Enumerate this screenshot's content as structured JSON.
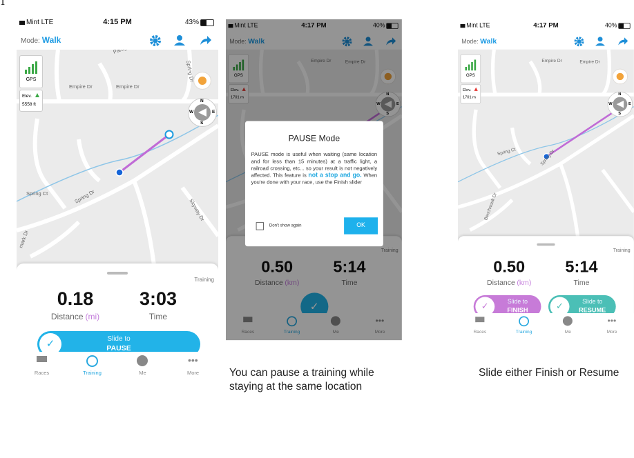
{
  "figure_number": "1",
  "screens": [
    {
      "status": {
        "carrier": "Mint LTE",
        "time": "4:15 PM",
        "battery": "43%"
      },
      "mode_label": "Mode:",
      "mode": "Walk",
      "map_labels": [
        "Paragon Dr",
        "Empire Dr",
        "Empire Dr",
        "Spring Dr",
        "Spring Ct",
        "Spring Dr",
        "Skyway Dr",
        "mark Dr"
      ],
      "gps": "GPS",
      "elev_label": "Elev.",
      "elev_value": "5558 ft",
      "compass": [
        "N",
        "W",
        "E",
        "S"
      ],
      "panel_tag": "Training",
      "distance": "0.18",
      "distance_label": "Distance",
      "distance_unit": "(mi)",
      "time": "3:03",
      "time_label": "Time",
      "sliders": [
        {
          "line1": "Slide to",
          "line2": "PAUSE"
        }
      ],
      "tabs": [
        "Races",
        "Training",
        "Me",
        "More"
      ]
    },
    {
      "status": {
        "carrier": "Mint LTE",
        "time": "4:17 PM",
        "battery": "40%"
      },
      "mode_label": "Mode:",
      "mode": "Walk",
      "map_labels": [
        "Empire Dr",
        "Empire Dr"
      ],
      "gps": "GPS",
      "elev_label": "Elev.",
      "elev_value": "1701 m",
      "compass": [
        "N",
        "W",
        "E",
        "S"
      ],
      "panel_tag": "Training",
      "distance": "0.50",
      "distance_label": "Distance",
      "distance_unit": "(km)",
      "time": "5:14",
      "time_label": "Time",
      "sliders": [],
      "tabs": [
        "Races",
        "Training",
        "Me",
        "More"
      ],
      "dialog": {
        "title": "PAUSE Mode",
        "body": "PAUSE mode is useful when waiting (same location and for less than 15 minutes) at a traffic light, a railroad crossing, etc... so your result is not negatively affected. This feature is ",
        "highlight": "not a stop and go.",
        "body_end": " When you're done with your race, use the Finish slider",
        "checkbox": "Don't show again",
        "button": "OK"
      }
    },
    {
      "status": {
        "carrier": "Mint LTE",
        "time": "4:17 PM",
        "battery": "40%"
      },
      "mode_label": "Mode:",
      "mode": "Walk",
      "map_labels": [
        "Empire Dr",
        "Empire Dr",
        "Spring Ct",
        "Spring Dr",
        "Benchmark Dr"
      ],
      "gps": "GPS",
      "elev_label": "Elev.",
      "elev_value": "1701 m",
      "compass": [
        "N",
        "W",
        "E",
        "S"
      ],
      "panel_tag": "Training",
      "distance": "0.50",
      "distance_label": "Distance",
      "distance_unit": "(km)",
      "time": "5:14",
      "time_label": "Time",
      "sliders": [
        {
          "line1": "Slide to",
          "line2": "FINISH"
        },
        {
          "line1": "Slide to",
          "line2": "RESUME"
        }
      ],
      "tabs": [
        "Races",
        "Training",
        "Me",
        "More"
      ]
    }
  ],
  "captions": [
    "You can pause a training while staying at the same location",
    "Slide either Finish or Resume"
  ]
}
